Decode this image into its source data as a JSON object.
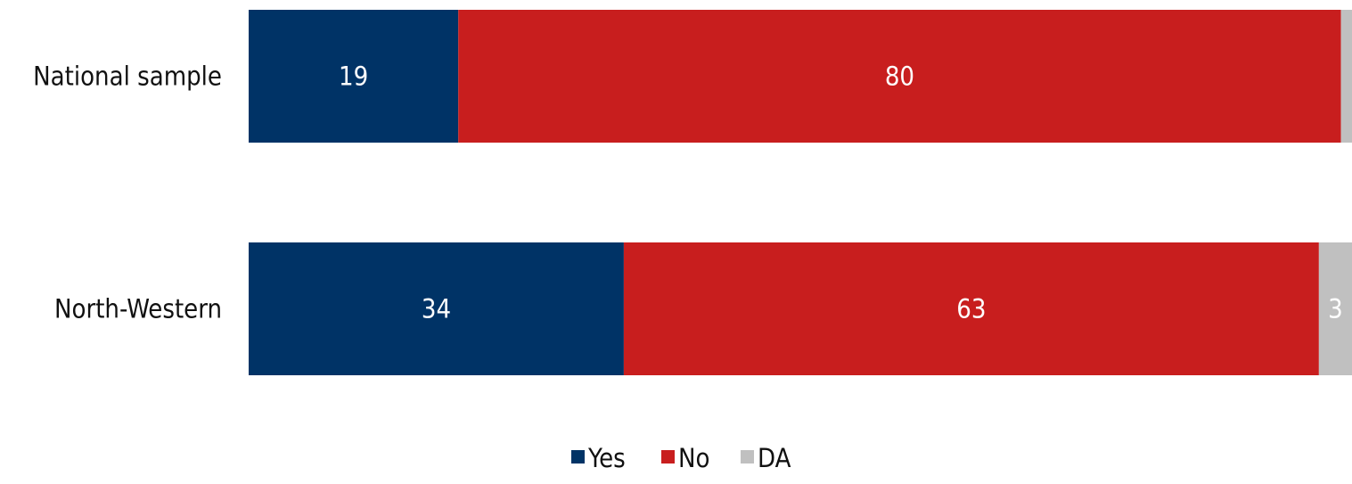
{
  "chart_data": {
    "type": "bar",
    "orientation": "horizontal",
    "stacked": true,
    "categories": [
      "National sample",
      "North-Western"
    ],
    "series": [
      {
        "name": "Yes",
        "values": [
          19,
          34
        ],
        "color": "#003366"
      },
      {
        "name": "No",
        "values": [
          80,
          63
        ],
        "color": "#C81E1E"
      },
      {
        "name": "DA",
        "values": [
          1,
          3
        ],
        "color": "#C0C0C0"
      }
    ],
    "data_labels": [
      [
        "19",
        "34"
      ],
      [
        "80",
        "63"
      ],
      [
        "",
        "3"
      ]
    ],
    "xlim": [
      0,
      100
    ],
    "grid": false,
    "legend_position": "bottom"
  }
}
